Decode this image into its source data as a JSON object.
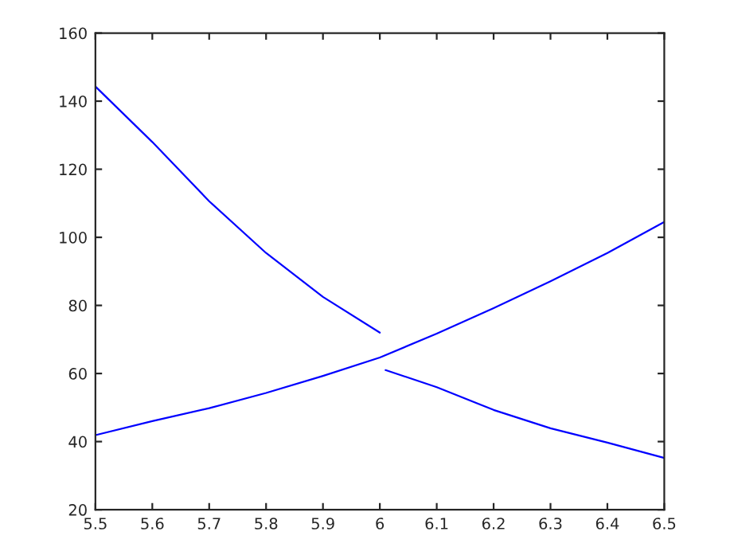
{
  "chart_data": {
    "type": "line",
    "series": [
      {
        "color": "#0000ff",
        "x": [
          5.5,
          5.6,
          5.7,
          5.8,
          5.9,
          6.0,
          6.005,
          6.01,
          6.1,
          6.2,
          6.3,
          6.4,
          6.5
        ],
        "values": [
          144.3,
          128,
          110.6,
          95.4,
          82.5,
          72,
          null,
          61,
          56,
          49.3,
          43.9,
          39.7,
          35.2
        ]
      },
      {
        "color": "#0000ff",
        "x": [
          5.5,
          5.6,
          5.7,
          5.8,
          5.9,
          6.0,
          6.1,
          6.2,
          6.3,
          6.4,
          6.5
        ],
        "values": [
          41.9,
          46,
          49.8,
          54.3,
          59.3,
          64.7,
          71.7,
          79.2,
          87.1,
          95.4,
          104.5
        ]
      }
    ],
    "xlim": [
      5.5,
      6.5
    ],
    "xticks": [
      5.5,
      5.6,
      5.7,
      5.8,
      5.9,
      6,
      6.1,
      6.2,
      6.3,
      6.4,
      6.5
    ],
    "ylim": [
      20,
      160
    ],
    "yticks": [
      20,
      40,
      60,
      80,
      100,
      120,
      140,
      160
    ],
    "grid": false,
    "line_style": "solid",
    "marker": "none"
  }
}
